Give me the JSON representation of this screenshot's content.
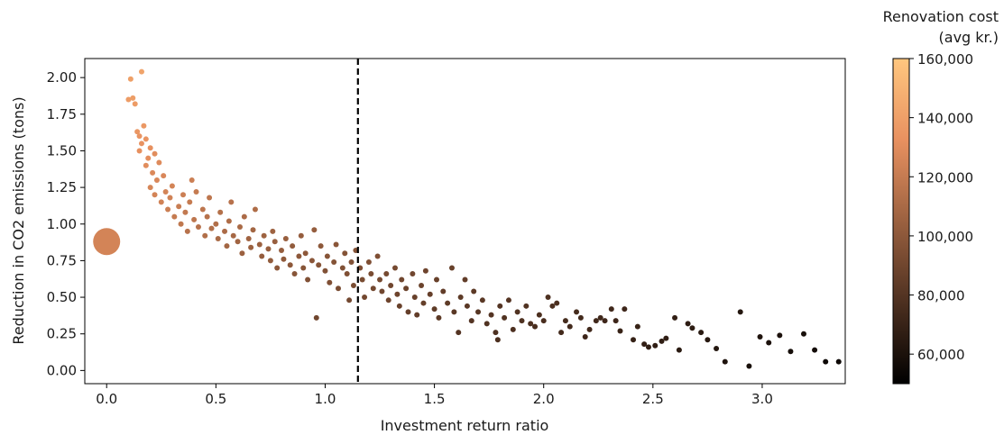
{
  "chart_data": {
    "type": "scatter",
    "xlabel": "Investment return ratio",
    "ylabel": "Reduction in CO2 emissions (tons)",
    "xlim": [
      -0.1,
      3.38
    ],
    "ylim": [
      -0.09,
      2.13
    ],
    "xticks": [
      0.0,
      0.5,
      1.0,
      1.5,
      2.0,
      2.5,
      3.0
    ],
    "yticks": [
      0.0,
      0.25,
      0.5,
      0.75,
      1.0,
      1.25,
      1.5,
      1.75,
      2.0
    ],
    "xtick_labels": [
      "0.0",
      "0.5",
      "1.0",
      "1.5",
      "2.0",
      "2.5",
      "3.0"
    ],
    "ytick_labels": [
      "0.00",
      "0.25",
      "0.50",
      "0.75",
      "1.00",
      "1.25",
      "1.50",
      "1.75",
      "2.00"
    ],
    "reference_line": {
      "x": 1.15,
      "style": "dashed",
      "color": "#000000"
    },
    "highlight_point": {
      "x": 0.0,
      "y": 0.88,
      "cost": 125000
    },
    "colorbar": {
      "title_line1": "Renovation cost",
      "title_line2": "(avg kr.)",
      "range": [
        50000,
        160000
      ],
      "ticks": [
        60000,
        80000,
        100000,
        120000,
        140000,
        160000
      ],
      "tick_labels": [
        "60,000",
        "80,000",
        "100,000",
        "120,000",
        "140,000",
        "160,000"
      ],
      "colormap": "copper"
    },
    "points": [
      [
        0.11,
        1.99,
        140000
      ],
      [
        0.16,
        2.04,
        142000
      ],
      [
        0.1,
        1.85,
        138000
      ],
      [
        0.12,
        1.86,
        139000
      ],
      [
        0.13,
        1.82,
        138000
      ],
      [
        0.14,
        1.63,
        135000
      ],
      [
        0.15,
        1.6,
        134000
      ],
      [
        0.16,
        1.55,
        133000
      ],
      [
        0.17,
        1.67,
        136000
      ],
      [
        0.18,
        1.58,
        134000
      ],
      [
        0.15,
        1.5,
        132000
      ],
      [
        0.19,
        1.45,
        131000
      ],
      [
        0.2,
        1.52,
        132000
      ],
      [
        0.22,
        1.48,
        130000
      ],
      [
        0.18,
        1.4,
        130000
      ],
      [
        0.21,
        1.35,
        128000
      ],
      [
        0.23,
        1.3,
        127000
      ],
      [
        0.24,
        1.42,
        129000
      ],
      [
        0.26,
        1.33,
        127000
      ],
      [
        0.2,
        1.25,
        126000
      ],
      [
        0.22,
        1.2,
        125000
      ],
      [
        0.25,
        1.15,
        124000
      ],
      [
        0.27,
        1.22,
        125000
      ],
      [
        0.29,
        1.18,
        124000
      ],
      [
        0.28,
        1.1,
        122000
      ],
      [
        0.3,
        1.26,
        125000
      ],
      [
        0.31,
        1.05,
        120000
      ],
      [
        0.33,
        1.12,
        121000
      ],
      [
        0.35,
        1.2,
        122000
      ],
      [
        0.34,
        1.0,
        118000
      ],
      [
        0.36,
        1.08,
        119000
      ],
      [
        0.38,
        1.15,
        120000
      ],
      [
        0.4,
        1.03,
        117000
      ],
      [
        0.37,
        0.95,
        115000
      ],
      [
        0.39,
        1.3,
        122000
      ],
      [
        0.41,
        1.22,
        120000
      ],
      [
        0.42,
        0.98,
        115000
      ],
      [
        0.44,
        1.1,
        117000
      ],
      [
        0.45,
        0.92,
        113000
      ],
      [
        0.46,
        1.05,
        115000
      ],
      [
        0.48,
        0.97,
        113000
      ],
      [
        0.47,
        1.18,
        117000
      ],
      [
        0.5,
        1.0,
        113000
      ],
      [
        0.51,
        0.9,
        110000
      ],
      [
        0.52,
        1.08,
        114000
      ],
      [
        0.54,
        0.95,
        111000
      ],
      [
        0.55,
        0.85,
        108000
      ],
      [
        0.56,
        1.02,
        112000
      ],
      [
        0.58,
        0.92,
        109000
      ],
      [
        0.57,
        1.15,
        115000
      ],
      [
        0.6,
        0.88,
        107000
      ],
      [
        0.61,
        0.98,
        110000
      ],
      [
        0.62,
        0.8,
        105000
      ],
      [
        0.63,
        1.05,
        111000
      ],
      [
        0.65,
        0.9,
        107000
      ],
      [
        0.66,
        0.84,
        105000
      ],
      [
        0.67,
        0.96,
        108000
      ],
      [
        0.68,
        1.1,
        112000
      ],
      [
        0.7,
        0.86,
        105000
      ],
      [
        0.71,
        0.78,
        103000
      ],
      [
        0.72,
        0.92,
        106000
      ],
      [
        0.74,
        0.83,
        104000
      ],
      [
        0.75,
        0.75,
        102000
      ],
      [
        0.76,
        0.95,
        106000
      ],
      [
        0.77,
        0.88,
        104000
      ],
      [
        0.78,
        0.7,
        100000
      ],
      [
        0.8,
        0.82,
        103000
      ],
      [
        0.81,
        0.76,
        101000
      ],
      [
        0.82,
        0.9,
        104000
      ],
      [
        0.84,
        0.72,
        100000
      ],
      [
        0.85,
        0.85,
        102000
      ],
      [
        0.86,
        0.66,
        98000
      ],
      [
        0.88,
        0.78,
        100000
      ],
      [
        0.89,
        0.92,
        103000
      ],
      [
        0.9,
        0.7,
        98000
      ],
      [
        0.91,
        0.8,
        100000
      ],
      [
        0.92,
        0.62,
        96000
      ],
      [
        0.94,
        0.75,
        99000
      ],
      [
        0.95,
        0.96,
        103000
      ],
      [
        0.96,
        0.36,
        90000
      ],
      [
        0.97,
        0.72,
        98000
      ],
      [
        0.98,
        0.85,
        100000
      ],
      [
        1.0,
        0.68,
        96000
      ],
      [
        1.01,
        0.78,
        98000
      ],
      [
        1.02,
        0.6,
        95000
      ],
      [
        1.04,
        0.74,
        97000
      ],
      [
        1.05,
        0.86,
        99000
      ],
      [
        1.06,
        0.56,
        93000
      ],
      [
        1.08,
        0.7,
        96000
      ],
      [
        1.09,
        0.8,
        97000
      ],
      [
        1.1,
        0.66,
        95000
      ],
      [
        1.11,
        0.48,
        91000
      ],
      [
        1.12,
        0.74,
        96000
      ],
      [
        1.13,
        0.58,
        93000
      ],
      [
        1.14,
        0.82,
        97000
      ],
      [
        1.16,
        0.7,
        95000
      ],
      [
        1.17,
        0.62,
        93000
      ],
      [
        1.18,
        0.5,
        91000
      ],
      [
        1.2,
        0.74,
        95000
      ],
      [
        1.21,
        0.66,
        93000
      ],
      [
        1.22,
        0.56,
        91000
      ],
      [
        1.24,
        0.78,
        95000
      ],
      [
        1.25,
        0.62,
        92000
      ],
      [
        1.26,
        0.54,
        90000
      ],
      [
        1.28,
        0.66,
        92000
      ],
      [
        1.29,
        0.48,
        89000
      ],
      [
        1.3,
        0.58,
        90000
      ],
      [
        1.32,
        0.7,
        92000
      ],
      [
        1.33,
        0.52,
        89000
      ],
      [
        1.34,
        0.44,
        87000
      ],
      [
        1.35,
        0.62,
        90000
      ],
      [
        1.37,
        0.56,
        88000
      ],
      [
        1.38,
        0.4,
        86000
      ],
      [
        1.4,
        0.66,
        90000
      ],
      [
        1.41,
        0.5,
        87000
      ],
      [
        1.42,
        0.38,
        85000
      ],
      [
        1.44,
        0.58,
        88000
      ],
      [
        1.45,
        0.46,
        86000
      ],
      [
        1.46,
        0.68,
        89000
      ],
      [
        1.48,
        0.52,
        86000
      ],
      [
        1.5,
        0.42,
        84000
      ],
      [
        1.51,
        0.62,
        87000
      ],
      [
        1.52,
        0.36,
        83000
      ],
      [
        1.54,
        0.54,
        85000
      ],
      [
        1.56,
        0.46,
        84000
      ],
      [
        1.58,
        0.7,
        87000
      ],
      [
        1.59,
        0.4,
        82000
      ],
      [
        1.61,
        0.26,
        80000
      ],
      [
        1.62,
        0.5,
        83000
      ],
      [
        1.64,
        0.62,
        85000
      ],
      [
        1.65,
        0.44,
        82000
      ],
      [
        1.67,
        0.34,
        80000
      ],
      [
        1.68,
        0.54,
        83000
      ],
      [
        1.7,
        0.4,
        81000
      ],
      [
        1.72,
        0.48,
        82000
      ],
      [
        1.74,
        0.32,
        79000
      ],
      [
        1.76,
        0.38,
        80000
      ],
      [
        1.78,
        0.26,
        78000
      ],
      [
        1.79,
        0.21,
        77000
      ],
      [
        1.8,
        0.44,
        80000
      ],
      [
        1.82,
        0.36,
        79000
      ],
      [
        1.84,
        0.48,
        80000
      ],
      [
        1.86,
        0.28,
        77000
      ],
      [
        1.88,
        0.4,
        79000
      ],
      [
        1.9,
        0.34,
        78000
      ],
      [
        1.92,
        0.44,
        79000
      ],
      [
        1.94,
        0.32,
        77000
      ],
      [
        1.96,
        0.3,
        76000
      ],
      [
        1.98,
        0.38,
        77000
      ],
      [
        2.0,
        0.34,
        76000
      ],
      [
        2.02,
        0.5,
        78000
      ],
      [
        2.04,
        0.44,
        77000
      ],
      [
        2.06,
        0.46,
        77000
      ],
      [
        2.08,
        0.26,
        74000
      ],
      [
        2.1,
        0.34,
        75000
      ],
      [
        2.12,
        0.3,
        74000
      ],
      [
        2.15,
        0.4,
        75000
      ],
      [
        2.17,
        0.36,
        74000
      ],
      [
        2.19,
        0.23,
        72000
      ],
      [
        2.21,
        0.28,
        73000
      ],
      [
        2.24,
        0.34,
        73000
      ],
      [
        2.26,
        0.36,
        73000
      ],
      [
        2.28,
        0.34,
        72000
      ],
      [
        2.31,
        0.42,
        73000
      ],
      [
        2.33,
        0.34,
        72000
      ],
      [
        2.35,
        0.27,
        70000
      ],
      [
        2.37,
        0.42,
        72000
      ],
      [
        2.41,
        0.21,
        69000
      ],
      [
        2.43,
        0.3,
        70000
      ],
      [
        2.46,
        0.18,
        68000
      ],
      [
        2.48,
        0.16,
        67000
      ],
      [
        2.51,
        0.17,
        67000
      ],
      [
        2.54,
        0.2,
        67000
      ],
      [
        2.56,
        0.22,
        67000
      ],
      [
        2.6,
        0.36,
        68000
      ],
      [
        2.62,
        0.14,
        65000
      ],
      [
        2.66,
        0.32,
        66000
      ],
      [
        2.68,
        0.29,
        66000
      ],
      [
        2.72,
        0.26,
        65000
      ],
      [
        2.75,
        0.21,
        64000
      ],
      [
        2.79,
        0.15,
        63000
      ],
      [
        2.83,
        0.06,
        61000
      ],
      [
        2.9,
        0.4,
        63000
      ],
      [
        2.94,
        0.03,
        59000
      ],
      [
        2.99,
        0.23,
        61000
      ],
      [
        3.03,
        0.19,
        60000
      ],
      [
        3.08,
        0.24,
        60000
      ],
      [
        3.13,
        0.13,
        58000
      ],
      [
        3.19,
        0.25,
        59000
      ],
      [
        3.24,
        0.14,
        57000
      ],
      [
        3.29,
        0.06,
        55000
      ],
      [
        3.35,
        0.06,
        55000
      ]
    ]
  }
}
